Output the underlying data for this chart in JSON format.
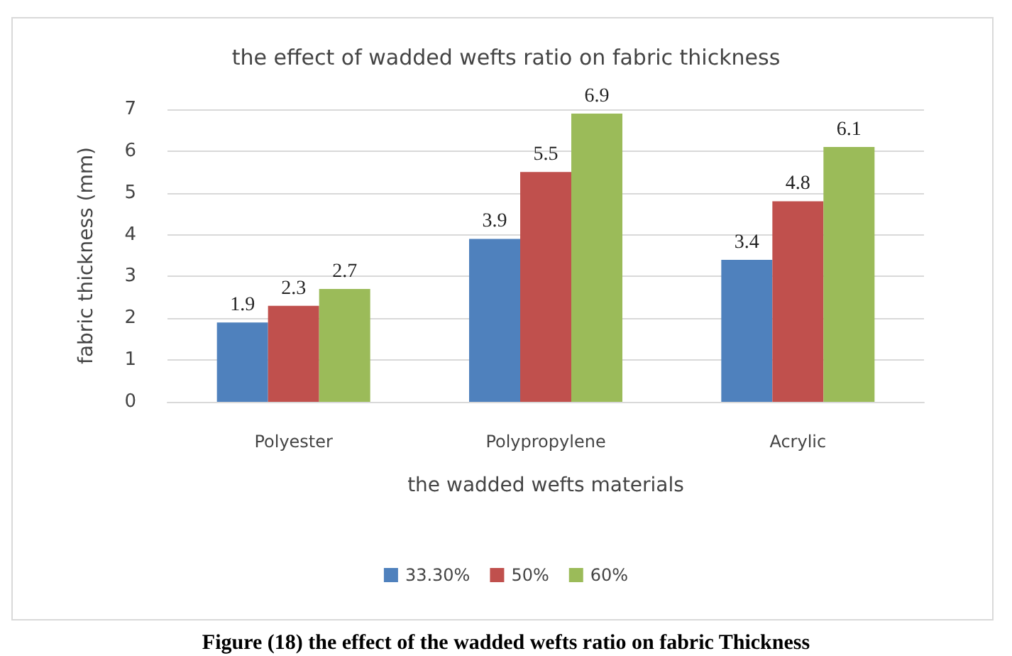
{
  "chart_data": {
    "type": "bar",
    "title": "the effect of wadded wefts ratio on fabric thickness",
    "xlabel": "the wadded wefts materials",
    "ylabel": "fabric thickness (mm)",
    "categories": [
      "Polyester",
      "Polypropylene",
      "Acrylic"
    ],
    "series": [
      {
        "name": "33.30%",
        "color": "#4f81bd",
        "values": [
          1.9,
          3.9,
          3.4
        ]
      },
      {
        "name": "50%",
        "color": "#c0504d",
        "values": [
          2.3,
          5.5,
          4.8
        ]
      },
      {
        "name": "60%",
        "color": "#9bbb59",
        "values": [
          2.7,
          6.9,
          6.1
        ]
      }
    ],
    "ylim": [
      0,
      7
    ],
    "yticks": [
      0,
      1,
      2,
      3,
      4,
      5,
      6,
      7
    ],
    "grid": "y",
    "legend": "bottom",
    "data_labels": true,
    "annotations": [
      "Figure (18) the effect of the wadded wefts ratio on fabric Thickness"
    ]
  }
}
